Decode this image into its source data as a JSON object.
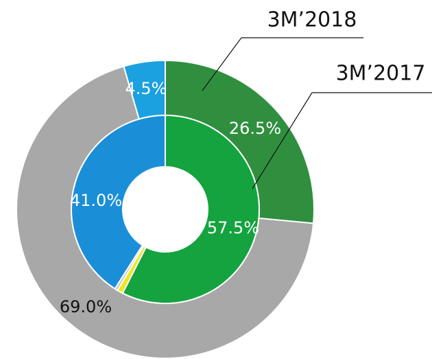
{
  "chart_data": {
    "type": "pie",
    "series": [
      {
        "name": "3M’2018",
        "values": [
          26.5,
          69.0,
          4.5
        ],
        "value_labels": [
          "26.5%",
          "69.0%",
          "4.5%"
        ],
        "colors": [
          "#2f8f3e",
          "#a8a8a8",
          "#1ba0e0"
        ]
      },
      {
        "name": "3M’2017",
        "values": [
          57.5,
          1.0,
          0.5,
          41.0
        ],
        "value_labels": [
          "57.5%",
          null,
          null,
          "41.0%"
        ],
        "colors": [
          "#14a33f",
          "#f0e61e",
          "#c0c0c0",
          "#1a8fd8"
        ]
      }
    ]
  }
}
